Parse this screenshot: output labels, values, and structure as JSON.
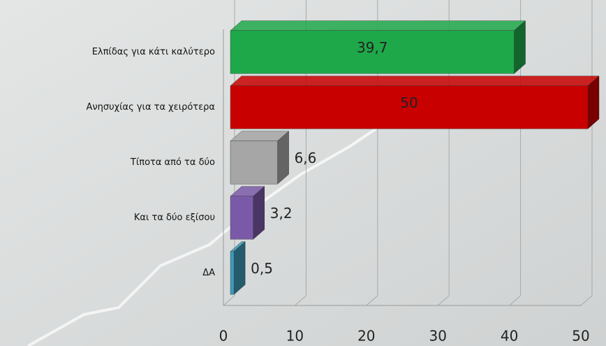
{
  "chart_data": {
    "type": "bar",
    "orientation": "horizontal",
    "categories": [
      "Ελπίδας για κάτι καλύτερο",
      "Ανησυχίας για τα χειρότερα",
      "Τίποτα από τα δύο",
      "Και τα δύο εξίσου",
      "ΔΑ"
    ],
    "values": [
      39.7,
      50,
      6.6,
      3.2,
      0.5
    ],
    "value_labels": [
      "39,7",
      "50",
      "6,6",
      "3,2",
      "0,5"
    ],
    "colors": [
      "#1ea84a",
      "#c80000",
      "#a6a6a6",
      "#7a5aa8",
      "#3c9ab8"
    ],
    "xlim": [
      0,
      50
    ],
    "xticks": [
      0,
      10,
      20,
      30,
      40,
      50
    ],
    "grid": true
  }
}
